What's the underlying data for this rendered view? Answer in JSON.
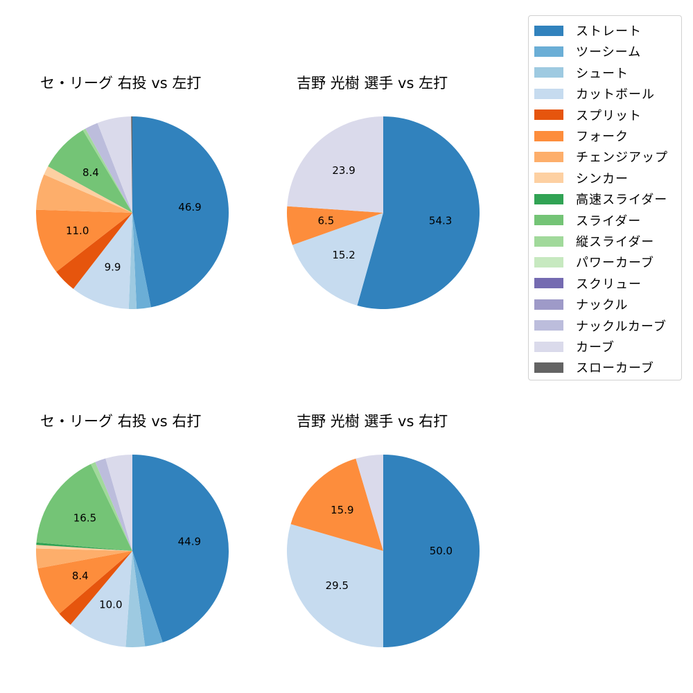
{
  "chart_data": [
    {
      "type": "pie",
      "title": "セ・リーグ 右投 vs 左打",
      "categories": [
        "ストレート",
        "ツーシーム",
        "シュート",
        "カットボール",
        "スプリット",
        "フォーク",
        "チェンジアップ",
        "シンカー",
        "スライダー",
        "縦スライダー",
        "ナックルカーブ",
        "カーブ",
        "スローカーブ"
      ],
      "values": [
        46.9,
        2.4,
        1.3,
        9.9,
        4.0,
        11.0,
        6.0,
        1.5,
        8.4,
        0.5,
        2.2,
        5.7,
        0.2
      ],
      "labels_shown": [
        "46.9",
        "",
        "",
        "9.9",
        "",
        "11.0",
        "",
        "",
        "8.4",
        "",
        "",
        "",
        ""
      ]
    },
    {
      "type": "pie",
      "title": "吉野 光樹 選手 vs 左打",
      "categories": [
        "ストレート",
        "カットボール",
        "フォーク",
        "カーブ"
      ],
      "values": [
        54.3,
        15.2,
        6.5,
        23.9
      ],
      "labels_shown": [
        "54.3",
        "15.2",
        "6.5",
        "23.9"
      ]
    },
    {
      "type": "pie",
      "title": "セ・リーグ 右投 vs 右打",
      "categories": [
        "ストレート",
        "ツーシーム",
        "シュート",
        "カットボール",
        "スプリット",
        "フォーク",
        "チェンジアップ",
        "シンカー",
        "高速スライダー",
        "スライダー",
        "縦スライダー",
        "ナックルカーブ",
        "カーブ"
      ],
      "values": [
        44.9,
        3.0,
        3.2,
        10.0,
        2.6,
        8.4,
        3.3,
        0.6,
        0.4,
        16.5,
        0.8,
        1.8,
        4.5
      ],
      "labels_shown": [
        "44.9",
        "",
        "",
        "10.0",
        "",
        "8.4",
        "",
        "",
        "",
        "16.5",
        "",
        "",
        ""
      ]
    },
    {
      "type": "pie",
      "title": "吉野 光樹 選手 vs 右打",
      "categories": [
        "ストレート",
        "カットボール",
        "フォーク",
        "カーブ"
      ],
      "values": [
        50.0,
        29.5,
        15.9,
        4.6
      ],
      "labels_shown": [
        "50.0",
        "29.5",
        "15.9",
        ""
      ]
    }
  ],
  "titles": {
    "top_left": "セ・リーグ 右投 vs 左打",
    "top_right": "吉野 光樹 選手 vs 左打",
    "bottom_left": "セ・リーグ 右投 vs 右打",
    "bottom_right": "吉野 光樹 選手 vs 右打"
  },
  "legend": {
    "position": "upper right",
    "items": [
      {
        "label": "ストレート",
        "color": "#3182bd"
      },
      {
        "label": "ツーシーム",
        "color": "#6baed6"
      },
      {
        "label": "シュート",
        "color": "#9ecae1"
      },
      {
        "label": "カットボール",
        "color": "#c6dbef"
      },
      {
        "label": "スプリット",
        "color": "#e6550d"
      },
      {
        "label": "フォーク",
        "color": "#fd8d3c"
      },
      {
        "label": "チェンジアップ",
        "color": "#fdae6b"
      },
      {
        "label": "シンカー",
        "color": "#fdd0a2"
      },
      {
        "label": "高速スライダー",
        "color": "#31a354"
      },
      {
        "label": "スライダー",
        "color": "#74c476"
      },
      {
        "label": "縦スライダー",
        "color": "#a1d99b"
      },
      {
        "label": "パワーカーブ",
        "color": "#c7e9c0"
      },
      {
        "label": "スクリュー",
        "color": "#756bb1"
      },
      {
        "label": "ナックル",
        "color": "#9e9ac8"
      },
      {
        "label": "ナックルカーブ",
        "color": "#bcbddc"
      },
      {
        "label": "カーブ",
        "color": "#dadaeb"
      },
      {
        "label": "スローカーブ",
        "color": "#636363"
      }
    ]
  }
}
